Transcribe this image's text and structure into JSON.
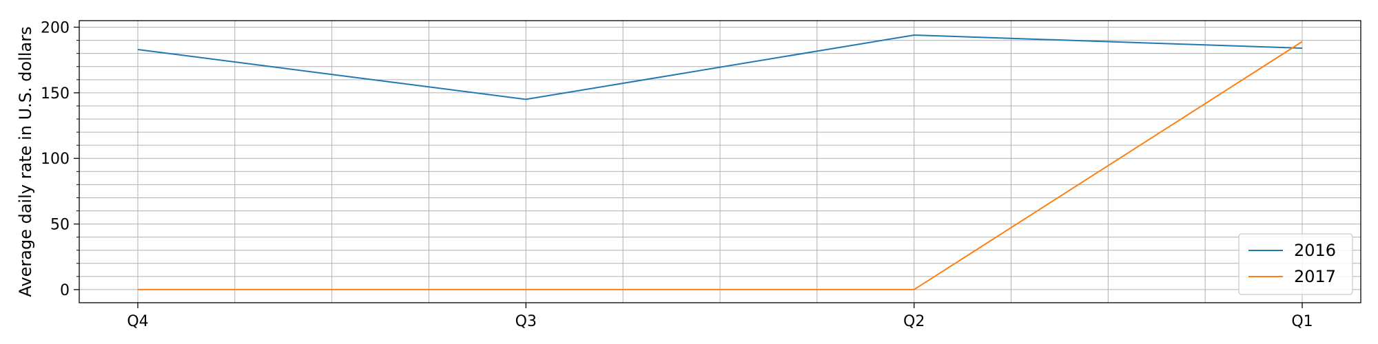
{
  "chart_data": {
    "type": "line",
    "title": "",
    "xlabel": "",
    "ylabel": "Average daily rate in U.S. dollars",
    "categories": [
      "Q4",
      "Q3",
      "Q2",
      "Q1"
    ],
    "series": [
      {
        "name": "2016",
        "values": [
          183,
          145,
          194,
          184
        ],
        "color": "#1f77b4"
      },
      {
        "name": "2017",
        "values": [
          0,
          0,
          0,
          189
        ],
        "color": "#ff7f0e"
      }
    ],
    "ylim": [
      -10,
      205
    ],
    "yticks": [
      0,
      50,
      100,
      150,
      200
    ],
    "grid": true,
    "legend_position": "bottom-right"
  }
}
